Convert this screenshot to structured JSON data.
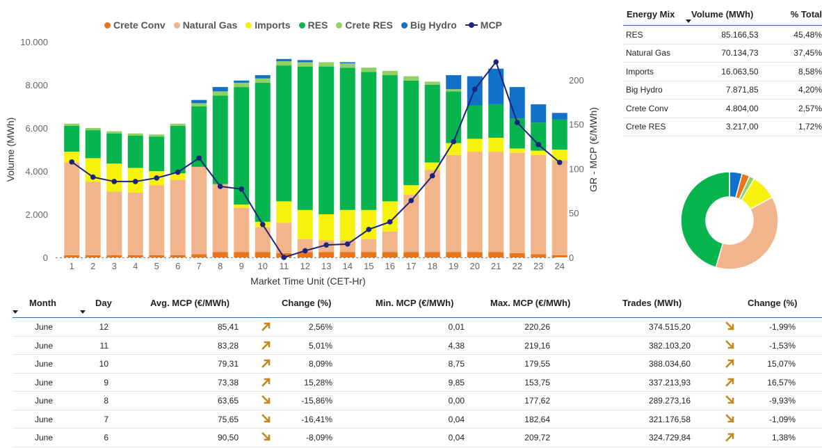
{
  "chart_data": {
    "type": "bar",
    "stacked": true,
    "categories": [
      "1",
      "2",
      "3",
      "4",
      "5",
      "6",
      "7",
      "8",
      "9",
      "10",
      "11",
      "12",
      "13",
      "14",
      "15",
      "16",
      "17",
      "18",
      "19",
      "20",
      "21",
      "22",
      "23",
      "24"
    ],
    "series": [
      {
        "name": "Crete Conv",
        "color": "#e8741c",
        "values": [
          100,
          100,
          100,
          100,
          100,
          100,
          150,
          250,
          250,
          250,
          200,
          250,
          250,
          250,
          250,
          250,
          250,
          250,
          250,
          250,
          250,
          200,
          150,
          100
        ]
      },
      {
        "name": "Natural Gas",
        "color": "#f2b48a",
        "values": [
          4300,
          3400,
          2950,
          2900,
          3250,
          3500,
          4050,
          3150,
          2050,
          1150,
          1400,
          600,
          550,
          550,
          600,
          950,
          2650,
          3800,
          4500,
          4650,
          4650,
          4650,
          4600,
          4400
        ]
      },
      {
        "name": "Imports",
        "color": "#f6f20d",
        "values": [
          500,
          1100,
          1300,
          1150,
          650,
          300,
          0,
          0,
          150,
          250,
          1000,
          1350,
          1200,
          1400,
          1350,
          1400,
          450,
          350,
          550,
          600,
          650,
          200,
          200,
          500
        ]
      },
      {
        "name": "RES",
        "color": "#07b44d",
        "values": [
          1200,
          1300,
          1400,
          1500,
          1600,
          2200,
          2800,
          4100,
          5450,
          6450,
          6300,
          6650,
          6850,
          6600,
          6400,
          5850,
          4850,
          3600,
          2400,
          1550,
          1550,
          1400,
          1300,
          1400
        ]
      },
      {
        "name": "Crete RES",
        "color": "#8fd165",
        "values": [
          100,
          100,
          100,
          100,
          100,
          100,
          150,
          200,
          200,
          200,
          200,
          200,
          200,
          200,
          200,
          200,
          200,
          150,
          100,
          0,
          0,
          0,
          0,
          0
        ]
      },
      {
        "name": "Big Hydro",
        "color": "#1170c8",
        "values": [
          0,
          0,
          0,
          0,
          0,
          0,
          150,
          200,
          100,
          150,
          100,
          100,
          0,
          50,
          0,
          0,
          0,
          0,
          650,
          1350,
          1650,
          1450,
          850,
          300
        ]
      }
    ],
    "line_series": {
      "name": "MCP",
      "color": "#1a237e",
      "values": [
        107.5,
        90.5,
        85.5,
        85.5,
        89.5,
        96.0,
        112.0,
        80.0,
        77.0,
        37.0,
        0.01,
        7.5,
        14.0,
        15.0,
        31.5,
        40.0,
        64.0,
        92.0,
        130.5,
        189.5,
        220.26,
        152.0,
        127.0,
        107.0
      ]
    },
    "xlabel": "Market Time Unit (CET-Hr)",
    "ylabel": "Volume (MWh)",
    "y2label": "GR - MCP (€/MWh)",
    "ylim": [
      0,
      10000
    ],
    "y2lim": [
      0,
      243
    ],
    "yticks": [
      "0",
      "2.000",
      "4.000",
      "6.000",
      "8.000",
      "10.000"
    ],
    "yticks_values": [
      0,
      2000,
      4000,
      6000,
      8000,
      10000
    ],
    "y2ticks": [
      "0",
      "50",
      "100",
      "150",
      "200"
    ],
    "y2ticks_values": [
      0,
      50,
      100,
      150,
      200
    ],
    "legend_position": "top"
  },
  "energy_mix": {
    "headers": {
      "source": "Energy Mix",
      "volume": "Volume (MWh)",
      "pct": "% Total"
    },
    "rows": [
      {
        "source": "RES",
        "volume": "85.166,53",
        "pct": "45,48%",
        "value": 45.48,
        "color": "#07b44d"
      },
      {
        "source": "Natural Gas",
        "volume": "70.134,73",
        "pct": "37,45%",
        "value": 37.45,
        "color": "#f2b48a"
      },
      {
        "source": "Imports",
        "volume": "16.063,50",
        "pct": "8,58%",
        "value": 8.58,
        "color": "#f6f20d"
      },
      {
        "source": "Big Hydro",
        "volume": "7.871,85",
        "pct": "4,20%",
        "value": 4.2,
        "color": "#1170c8"
      },
      {
        "source": "Crete Conv",
        "volume": "4.804,00",
        "pct": "2,57%",
        "value": 2.57,
        "color": "#e8741c"
      },
      {
        "source": "Crete RES",
        "volume": "3.217,00",
        "pct": "1,72%",
        "value": 1.72,
        "color": "#8fd165"
      }
    ],
    "donut_order": [
      "Big Hydro",
      "Crete Conv",
      "Crete RES",
      "Imports",
      "Natural Gas",
      "RES"
    ]
  },
  "trades_table": {
    "headers": {
      "month": "Month",
      "day": "Day",
      "avg": "Avg. MCP (€/MWh)",
      "change1": "Change (%)",
      "min": "Min. MCP (€/MWh)",
      "max": "Max. MCP (€/MWh)",
      "trades": "Trades (MWh)",
      "change2": "Change (%)"
    },
    "rows": [
      {
        "month": "June",
        "day": "12",
        "avg": "85,41",
        "dir1": "up",
        "change1": "2,56%",
        "min": "0,01",
        "max": "220,26",
        "trades": "374.515,20",
        "dir2": "down",
        "change2": "-1,99%"
      },
      {
        "month": "June",
        "day": "11",
        "avg": "83,28",
        "dir1": "up",
        "change1": "5,01%",
        "min": "4,38",
        "max": "219,16",
        "trades": "382.103,20",
        "dir2": "down",
        "change2": "-1,53%"
      },
      {
        "month": "June",
        "day": "10",
        "avg": "79,31",
        "dir1": "up",
        "change1": "8,09%",
        "min": "8,75",
        "max": "179,55",
        "trades": "388.034,60",
        "dir2": "up",
        "change2": "15,07%"
      },
      {
        "month": "June",
        "day": "9",
        "avg": "73,38",
        "dir1": "up",
        "change1": "15,28%",
        "min": "9,85",
        "max": "153,75",
        "trades": "337.213,93",
        "dir2": "up",
        "change2": "16,57%"
      },
      {
        "month": "June",
        "day": "8",
        "avg": "63,65",
        "dir1": "down",
        "change1": "-15,86%",
        "min": "0,00",
        "max": "177,62",
        "trades": "289.273,16",
        "dir2": "down",
        "change2": "-9,93%"
      },
      {
        "month": "June",
        "day": "7",
        "avg": "75,65",
        "dir1": "down",
        "change1": "-16,41%",
        "min": "0,04",
        "max": "182,64",
        "trades": "321.176,58",
        "dir2": "down",
        "change2": "-1,09%"
      },
      {
        "month": "June",
        "day": "6",
        "avg": "90,50",
        "dir1": "down",
        "change1": "-8,09%",
        "min": "0,04",
        "max": "209,72",
        "trades": "324.729,84",
        "dir2": "up",
        "change2": "1,38%"
      }
    ]
  },
  "colors": {
    "accent": "#2b6cb0",
    "arrow": "#c08a1e"
  }
}
